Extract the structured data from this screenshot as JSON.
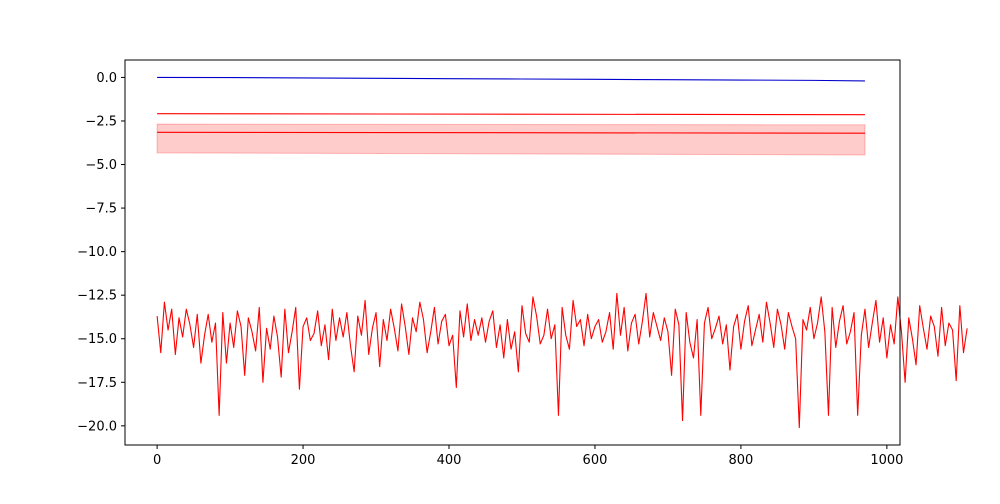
{
  "chart_data": {
    "type": "line",
    "title": "",
    "xlabel": "",
    "ylabel": "",
    "xlim": [
      -44,
      1018
    ],
    "ylim": [
      -21.1,
      1.0
    ],
    "grid": false,
    "x_ticks": [
      0,
      200,
      400,
      600,
      800,
      1000
    ],
    "x_tick_labels": [
      "0",
      "200",
      "400",
      "600",
      "800",
      "1000"
    ],
    "y_ticks": [
      0.0,
      -2.5,
      -5.0,
      -7.5,
      -10.0,
      -12.5,
      -15.0,
      -17.5,
      -20.0
    ],
    "y_tick_labels": [
      "0.0",
      "−2.5",
      "−5.0",
      "−7.5",
      "−10.0",
      "−12.5",
      "−15.0",
      "−17.5",
      "−20.0"
    ],
    "colors": {
      "blue_series": "#0000cc",
      "red_series": "#ff0000",
      "band_fill": "#ff0000"
    },
    "series": [
      {
        "style": "line",
        "color": "#0000cc",
        "x": [
          0,
          100,
          200,
          300,
          400,
          500,
          600,
          700,
          800,
          900,
          970
        ],
        "y": [
          0.0,
          -0.01,
          -0.03,
          -0.05,
          -0.07,
          -0.09,
          -0.11,
          -0.13,
          -0.15,
          -0.17,
          -0.2
        ]
      },
      {
        "style": "line",
        "color": "#ff0000",
        "x": [
          0,
          970
        ],
        "y": [
          -2.08,
          -2.14
        ]
      },
      {
        "style": "line",
        "color": "#ff0000",
        "x": [
          0,
          970
        ],
        "y": [
          -3.15,
          -3.2
        ]
      },
      {
        "style": "band",
        "color": "#ff0000",
        "x": [
          0,
          970
        ],
        "upper": [
          -2.68,
          -2.72
        ],
        "lower": [
          -4.33,
          -4.45
        ]
      },
      {
        "style": "line",
        "color": "#ff0000",
        "x_start": 0,
        "x_step": 5,
        "y": [
          -13.7,
          -15.8,
          -12.9,
          -14.5,
          -13.3,
          -15.9,
          -13.8,
          -14.9,
          -13.3,
          -14.2,
          -15.5,
          -13.6,
          -16.4,
          -14.8,
          -13.6,
          -15.2,
          -14.1,
          -19.4,
          -13.5,
          -16.4,
          -14.1,
          -15.5,
          -13.4,
          -14.3,
          -17.1,
          -13.8,
          -14.6,
          -15.7,
          -13.2,
          -17.5,
          -14.4,
          -15.6,
          -13.7,
          -14.9,
          -17.2,
          -13.3,
          -15.8,
          -14.6,
          -13.2,
          -17.9,
          -14.3,
          -13.8,
          -15.1,
          -14.7,
          -13.4,
          -15.4,
          -14.2,
          -16.2,
          -13.3,
          -15.1,
          -13.8,
          -14.9,
          -13.5,
          -15.4,
          -16.9,
          -13.7,
          -14.8,
          -12.8,
          -15.9,
          -14.4,
          -13.5,
          -16.6,
          -13.9,
          -15.1,
          -13.3,
          -14.4,
          -15.7,
          -13.0,
          -14.3,
          -15.9,
          -13.8,
          -14.6,
          -12.9,
          -13.9,
          -15.8,
          -14.6,
          -13.2,
          -15.3,
          -14.0,
          -13.6,
          -15.4,
          -14.8,
          -17.8,
          -13.4,
          -14.9,
          -13.0,
          -15.1,
          -13.9,
          -14.8,
          -13.8,
          -15.2,
          -14.0,
          -13.4,
          -15.5,
          -14.2,
          -16.1,
          -13.9,
          -15.6,
          -14.6,
          -16.9,
          -13.1,
          -14.7,
          -15.2,
          -12.6,
          -13.7,
          -15.3,
          -14.8,
          -13.3,
          -15.0,
          -14.2,
          -19.4,
          -13.2,
          -14.8,
          -15.6,
          -12.8,
          -14.3,
          -13.9,
          -15.4,
          -13.6,
          -15.0,
          -14.3,
          -13.9,
          -15.2,
          -14.6,
          -13.5,
          -15.6,
          -12.4,
          -14.8,
          -13.2,
          -15.7,
          -14.1,
          -13.6,
          -15.3,
          -14.0,
          -12.4,
          -14.9,
          -13.5,
          -14.3,
          -15.1,
          -13.8,
          -14.6,
          -17.1,
          -13.3,
          -14.2,
          -19.7,
          -13.5,
          -15.2,
          -16.1,
          -13.9,
          -19.4,
          -14.1,
          -13.2,
          -15.0,
          -14.4,
          -13.7,
          -15.3,
          -14.2,
          -16.8,
          -14.3,
          -13.6,
          -15.6,
          -14.0,
          -13.1,
          -15.4,
          -14.5,
          -13.6,
          -15.2,
          -12.9,
          -14.1,
          -15.5,
          -13.3,
          -14.2,
          -15.6,
          -13.5,
          -14.3,
          -15.0,
          -20.1,
          -13.9,
          -14.5,
          -13.2,
          -15.0,
          -14.1,
          -12.6,
          -14.6,
          -19.4,
          -13.2,
          -15.5,
          -14.0,
          -13.1,
          -15.3,
          -14.6,
          -13.5,
          -19.4,
          -14.8,
          -13.3,
          -15.5,
          -14.1,
          -12.8,
          -15.2,
          -13.8,
          -16.1,
          -14.2,
          -15.3,
          -12.6,
          -14.6,
          -17.5,
          -13.8,
          -15.0,
          -16.5,
          -13.1,
          -14.4,
          -15.6,
          -13.7,
          -14.3,
          -16.0,
          -13.2,
          -15.4,
          -14.1,
          -14.5,
          -17.4,
          -13.1,
          -15.8,
          -14.4
        ]
      }
    ]
  }
}
